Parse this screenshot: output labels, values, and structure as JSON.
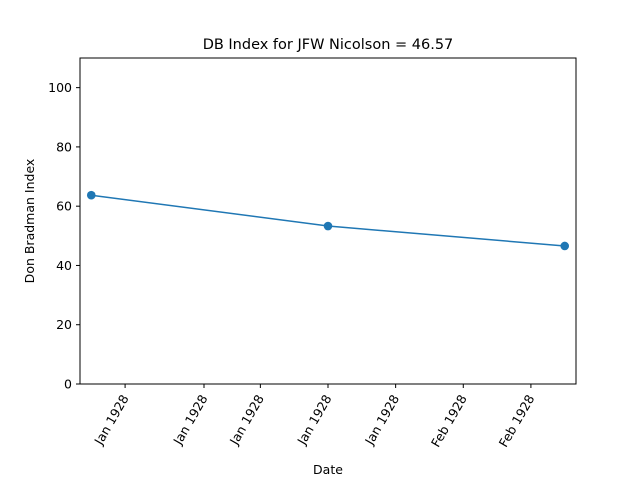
{
  "chart_data": {
    "type": "line",
    "title": "DB Index for JFW Nicolson = 46.57",
    "xlabel": "Date",
    "ylabel": "Don Bradman Index",
    "series": [
      {
        "x": [
          "1927-12-24",
          "1928-01-14",
          "1928-02-04"
        ],
        "values": [
          63.7,
          53.3,
          46.57
        ],
        "color": "#1f77b4"
      }
    ],
    "x_ticks": [
      {
        "date": "1927-12-27",
        "label": "Jan 1928"
      },
      {
        "date": "1928-01-03",
        "label": "Jan 1928"
      },
      {
        "date": "1928-01-08",
        "label": "Jan 1928"
      },
      {
        "date": "1928-01-14",
        "label": "Jan 1928"
      },
      {
        "date": "1928-01-20",
        "label": "Jan 1928"
      },
      {
        "date": "1928-01-26",
        "label": "Feb 1928"
      },
      {
        "date": "1928-02-01",
        "label": "Feb 1928"
      }
    ],
    "xlim": [
      "1927-12-23",
      "1928-02-05"
    ],
    "ylim": [
      0,
      110
    ],
    "y_ticks": [
      0,
      20,
      40,
      60,
      80,
      100
    ],
    "grid": false,
    "legend": "none"
  }
}
